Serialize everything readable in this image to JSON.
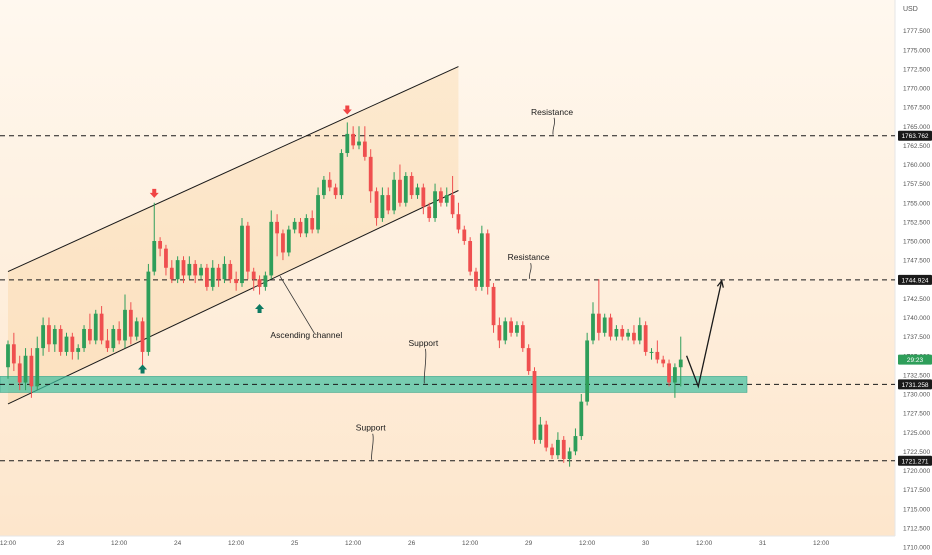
{
  "chart_data": {
    "type": "candlestick",
    "currency": "USD",
    "ylim": [
      1710,
      1780
    ],
    "y_ticks": [
      "1710.000",
      "1712.500",
      "1715.000",
      "1717.500",
      "1720.000",
      "1722.500",
      "1725.000",
      "1727.500",
      "1730.000",
      "1732.500",
      "1735.000",
      "1737.500",
      "1740.000",
      "1742.500",
      "1745.000",
      "1747.500",
      "1750.000",
      "1752.500",
      "1755.000",
      "1757.500",
      "1760.000",
      "1762.500",
      "1765.000",
      "1767.500",
      "1770.000",
      "1772.500",
      "1775.000",
      "1777.500"
    ],
    "x_ticks": [
      "12:00",
      "23",
      "12:00",
      "24",
      "12:00",
      "25",
      "12:00",
      "26",
      "12:00",
      "29",
      "12:00",
      "30",
      "12:00",
      "31",
      "12:00"
    ],
    "x_tick_index": [
      0,
      9,
      19,
      29,
      39,
      49,
      59,
      69,
      79,
      89,
      99,
      109,
      119,
      129,
      139
    ],
    "price_levels": [
      {
        "value": 1763.762,
        "label": "1763.762"
      },
      {
        "value": 1744.924,
        "label": "1744.924"
      },
      {
        "value": 1731.258,
        "label": "1731.258"
      },
      {
        "value": 1721.271,
        "label": "1721.271"
      }
    ],
    "countdown_label": "29:23",
    "countdown_value": 1734.5,
    "support_zone": {
      "low": 1730.2,
      "high": 1732.3
    },
    "channel": {
      "upper": [
        [
          0,
          1746
        ],
        [
          77,
          1772.8
        ]
      ],
      "lower": [
        [
          0,
          1728.7
        ],
        [
          77,
          1756.6
        ]
      ],
      "fill_start": 0,
      "fill_end": 77
    },
    "annotations": [
      {
        "text": "Resistance",
        "price": 1766.5,
        "index": 93,
        "arrow_to": 1763.762
      },
      {
        "text": "Resistance",
        "price": 1747.5,
        "index": 89,
        "arrow_to": 1744.924
      },
      {
        "text": "Support",
        "price": 1736.3,
        "index": 71,
        "arrow_to": 1731.258
      },
      {
        "text": "Support",
        "price": 1725.2,
        "index": 62,
        "arrow_to": 1721.271
      },
      {
        "text": "Ascending channel",
        "price": 1737.3,
        "index": 51
      }
    ],
    "signals": [
      {
        "type": "up",
        "index": 23,
        "price": 1733.6
      },
      {
        "type": "down",
        "index": 25,
        "price": 1755.9
      },
      {
        "type": "up",
        "index": 43,
        "price": 1741.5
      },
      {
        "type": "down",
        "index": 58,
        "price": 1766.8
      }
    ],
    "projection": [
      [
        116,
        1735
      ],
      [
        118,
        1731
      ],
      [
        122,
        1744.8
      ]
    ],
    "candles": [
      [
        1733.5,
        1736.5,
        1732,
        1737
      ],
      [
        1736.5,
        1734,
        1733,
        1738
      ],
      [
        1734,
        1731.5,
        1730.5,
        1735
      ],
      [
        1731.5,
        1735,
        1730.5,
        1736
      ],
      [
        1735,
        1731,
        1729.5,
        1736
      ],
      [
        1731,
        1736,
        1730.5,
        1737.5
      ],
      [
        1736,
        1739,
        1735,
        1740
      ],
      [
        1739,
        1736.5,
        1735.5,
        1740
      ],
      [
        1736.5,
        1738.5,
        1735.5,
        1739
      ],
      [
        1738.5,
        1735.5,
        1735,
        1739
      ],
      [
        1735.5,
        1737.5,
        1735,
        1738
      ],
      [
        1737.5,
        1735.5,
        1734.5,
        1738
      ],
      [
        1735.5,
        1736,
        1734.5,
        1736.5
      ],
      [
        1736,
        1738.5,
        1735.5,
        1739
      ],
      [
        1738.5,
        1737,
        1736.5,
        1740.5
      ],
      [
        1737,
        1740.5,
        1736.5,
        1741
      ],
      [
        1740.5,
        1737,
        1736.5,
        1741.5
      ],
      [
        1737,
        1736,
        1735.5,
        1738.5
      ],
      [
        1736,
        1738.5,
        1735.5,
        1739
      ],
      [
        1738.5,
        1737,
        1736.5,
        1739.5
      ],
      [
        1737,
        1741,
        1736,
        1743
      ],
      [
        1741,
        1737.5,
        1736.5,
        1742
      ],
      [
        1737.5,
        1739.5,
        1737,
        1740
      ],
      [
        1739.5,
        1735.5,
        1733,
        1740
      ],
      [
        1735.5,
        1746,
        1735,
        1747
      ],
      [
        1746,
        1750,
        1745.5,
        1755
      ],
      [
        1750,
        1749,
        1748,
        1750.5
      ],
      [
        1749,
        1746.5,
        1745.5,
        1749.5
      ],
      [
        1746.5,
        1745,
        1744.5,
        1747.5
      ],
      [
        1745,
        1747.5,
        1744.5,
        1748
      ],
      [
        1747.5,
        1745.5,
        1744.5,
        1748
      ],
      [
        1745.5,
        1747,
        1745,
        1748
      ],
      [
        1747,
        1745.5,
        1744.5,
        1747.5
      ],
      [
        1745.5,
        1746.5,
        1745,
        1747
      ],
      [
        1746.5,
        1744,
        1743.5,
        1747
      ],
      [
        1744,
        1746.5,
        1743.5,
        1747.5
      ],
      [
        1746.5,
        1745,
        1744,
        1747
      ],
      [
        1745,
        1747,
        1744.5,
        1748
      ],
      [
        1747,
        1745,
        1744.5,
        1747.5
      ],
      [
        1745,
        1744.5,
        1743.5,
        1746
      ],
      [
        1744.5,
        1752,
        1744,
        1753
      ],
      [
        1752,
        1746,
        1745,
        1752.5
      ],
      [
        1746,
        1745,
        1743.5,
        1746.5
      ],
      [
        1745,
        1744,
        1743,
        1745.5
      ],
      [
        1744,
        1745.5,
        1743.5,
        1746
      ],
      [
        1745.5,
        1752.5,
        1745,
        1754
      ],
      [
        1752.5,
        1751,
        1748,
        1753.5
      ],
      [
        1751,
        1748.5,
        1747.5,
        1751.5
      ],
      [
        1748.5,
        1751.5,
        1748,
        1752
      ],
      [
        1751.5,
        1752.5,
        1751,
        1753
      ],
      [
        1752.5,
        1751,
        1750.5,
        1753
      ],
      [
        1751,
        1753,
        1750.5,
        1753.5
      ],
      [
        1753,
        1751.5,
        1751,
        1754
      ],
      [
        1751.5,
        1756,
        1751,
        1757
      ],
      [
        1756,
        1758,
        1755.5,
        1758.5
      ],
      [
        1758,
        1757,
        1756.5,
        1759
      ],
      [
        1757,
        1756,
        1755.5,
        1757.5
      ],
      [
        1756,
        1761.5,
        1755.5,
        1762
      ],
      [
        1761.5,
        1764,
        1761,
        1765.5
      ],
      [
        1764,
        1762.5,
        1762,
        1765
      ],
      [
        1762.5,
        1763,
        1762,
        1765
      ],
      [
        1763,
        1761,
        1760.5,
        1765
      ],
      [
        1761,
        1756.5,
        1755,
        1762
      ],
      [
        1756.5,
        1753,
        1752,
        1757
      ],
      [
        1753,
        1756,
        1752.5,
        1757
      ],
      [
        1756,
        1754,
        1753.5,
        1757
      ],
      [
        1754,
        1758,
        1753.5,
        1759
      ],
      [
        1758,
        1755,
        1754.5,
        1760
      ],
      [
        1755,
        1758.5,
        1754.5,
        1759
      ],
      [
        1758.5,
        1756,
        1755.5,
        1759
      ],
      [
        1756,
        1757,
        1755.5,
        1757.5
      ],
      [
        1757,
        1754.5,
        1753.5,
        1757.5
      ],
      [
        1754.5,
        1753,
        1752.5,
        1755
      ],
      [
        1753,
        1756.5,
        1752.5,
        1757.5
      ],
      [
        1756.5,
        1755,
        1754.5,
        1757
      ],
      [
        1755,
        1756,
        1754.5,
        1757
      ],
      [
        1756,
        1753.5,
        1753,
        1758.5
      ],
      [
        1753.5,
        1751.5,
        1751,
        1755
      ],
      [
        1751.5,
        1750,
        1749.5,
        1752
      ],
      [
        1750,
        1746,
        1745.5,
        1750.5
      ],
      [
        1746,
        1744,
        1743.5,
        1746.5
      ],
      [
        1744,
        1751,
        1743.5,
        1752
      ],
      [
        1751,
        1744,
        1743,
        1751.5
      ],
      [
        1744,
        1739,
        1738,
        1744.5
      ],
      [
        1739,
        1737,
        1736,
        1740
      ],
      [
        1737,
        1739.5,
        1736.5,
        1740
      ],
      [
        1739.5,
        1738,
        1737.5,
        1740
      ],
      [
        1738,
        1739,
        1737.5,
        1739.5
      ],
      [
        1739,
        1736,
        1735.5,
        1739.5
      ],
      [
        1736,
        1733,
        1732.5,
        1736.5
      ],
      [
        1733,
        1724,
        1723.5,
        1733.5
      ],
      [
        1724,
        1726,
        1723.5,
        1727
      ],
      [
        1726,
        1723,
        1722.5,
        1726.5
      ],
      [
        1723,
        1722,
        1721.5,
        1723.5
      ],
      [
        1722,
        1724,
        1721.5,
        1725
      ],
      [
        1724,
        1721.5,
        1721,
        1724.5
      ],
      [
        1721.5,
        1722.5,
        1720.5,
        1723
      ],
      [
        1722.5,
        1724.5,
        1722,
        1725.5
      ],
      [
        1724.5,
        1729,
        1724,
        1730
      ],
      [
        1729,
        1737,
        1728.5,
        1738
      ],
      [
        1737,
        1740.5,
        1736.5,
        1742
      ],
      [
        1740.5,
        1738,
        1737,
        1745
      ],
      [
        1738,
        1740,
        1737.5,
        1740.5
      ],
      [
        1740,
        1737.5,
        1737,
        1740.5
      ],
      [
        1737.5,
        1738.5,
        1737,
        1739
      ],
      [
        1738.5,
        1737.5,
        1737,
        1739
      ],
      [
        1737.5,
        1738,
        1737,
        1738.5
      ],
      [
        1738,
        1737,
        1736.5,
        1739
      ],
      [
        1737,
        1739,
        1736.5,
        1740
      ],
      [
        1739,
        1735.5,
        1735,
        1739.5
      ],
      [
        1735.5,
        1735.5,
        1734.5,
        1736
      ],
      [
        1735.5,
        1734.5,
        1734,
        1737
      ],
      [
        1734.5,
        1734,
        1733.5,
        1735
      ],
      [
        1734,
        1731.5,
        1731,
        1734.5
      ],
      [
        1731.5,
        1733.5,
        1729.5,
        1734
      ],
      [
        1733.5,
        1734.5,
        1731,
        1737.5
      ]
    ]
  }
}
